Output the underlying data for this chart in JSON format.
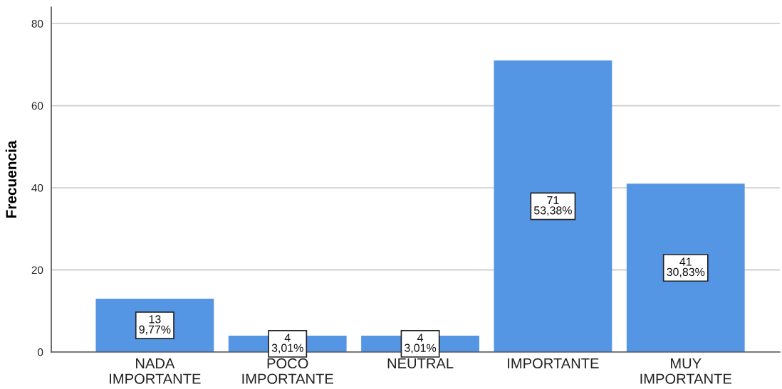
{
  "chart_data": {
    "type": "bar",
    "ylabel": "Frecuencia",
    "categories": [
      "NADA\nIMPORTANTE",
      "POCO\nIMPORTANTE",
      "NEUTRAL",
      "IMPORTANTE",
      "MUY\nIMPORTANTE"
    ],
    "values": [
      13,
      4,
      4,
      71,
      41
    ],
    "color": "#5596e4",
    "value_labels": [
      "13\n9,77%",
      "4\n3,01%",
      "4\n3,01%",
      "71\n53,38%",
      "41\n30,83%"
    ],
    "ylim": [
      0,
      84
    ],
    "yticks": [
      0,
      20,
      40,
      60,
      80
    ],
    "grid": "y"
  }
}
